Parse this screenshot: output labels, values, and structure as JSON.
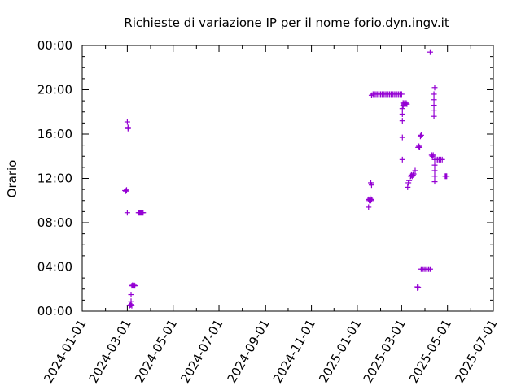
{
  "chart_data": {
    "type": "scatter",
    "title": "Richieste di variazione IP per il nome forio.dyn.ingv.it",
    "xlabel": "",
    "ylabel": "Orario",
    "x_ticks": [
      "2024-01-01",
      "2024-03-01",
      "2024-05-01",
      "2024-07-01",
      "2024-09-01",
      "2024-11-01",
      "2025-01-01",
      "2025-03-01",
      "2025-05-01",
      "2025-07-01"
    ],
    "y_ticks": [
      "00:00",
      "04:00",
      "08:00",
      "12:00",
      "16:00",
      "20:00",
      "00:00"
    ],
    "xlim": [
      "2024-01-01",
      "2025-07-01"
    ],
    "ylim_hours": [
      0,
      24
    ],
    "grid": false,
    "marker": "+",
    "color": "#9400d3",
    "series": [
      {
        "points": [
          [
            "2024-02-27",
            10.9
          ],
          [
            "2024-02-28",
            10.85
          ],
          [
            "2024-02-29",
            10.95
          ],
          [
            "2024-03-01",
            17.1
          ],
          [
            "2024-03-02",
            16.6
          ],
          [
            "2024-03-02",
            16.5
          ],
          [
            "2024-03-01",
            8.9
          ],
          [
            "2024-03-04",
            0.5
          ],
          [
            "2024-03-05",
            0.55
          ],
          [
            "2024-03-06",
            0.6
          ],
          [
            "2024-03-07",
            0.5
          ],
          [
            "2024-03-06",
            0.9
          ],
          [
            "2024-03-06",
            1.5
          ],
          [
            "2024-03-07",
            2.3
          ],
          [
            "2024-03-08",
            2.35
          ],
          [
            "2024-03-09",
            2.3
          ],
          [
            "2024-03-10",
            2.35
          ],
          [
            "2024-03-11",
            2.3
          ],
          [
            "2024-03-16",
            8.9
          ],
          [
            "2024-03-17",
            8.9
          ],
          [
            "2024-03-18",
            8.9
          ],
          [
            "2024-03-19",
            8.9
          ],
          [
            "2024-03-20",
            8.9
          ],
          [
            "2024-03-21",
            8.9
          ],
          [
            "2024-03-22",
            8.9
          ],
          [
            "2025-01-16",
            9.4
          ],
          [
            "2025-01-16",
            10.1
          ],
          [
            "2025-01-17",
            10.0
          ],
          [
            "2025-01-18",
            10.2
          ],
          [
            "2025-01-19",
            10.0
          ],
          [
            "2025-01-20",
            10.1
          ],
          [
            "2025-01-19",
            11.6
          ],
          [
            "2025-01-20",
            11.4
          ],
          [
            "2025-01-20",
            19.5
          ],
          [
            "2025-01-22",
            19.6
          ],
          [
            "2025-01-24",
            19.6
          ],
          [
            "2025-01-26",
            19.6
          ],
          [
            "2025-01-28",
            19.6
          ],
          [
            "2025-01-30",
            19.6
          ],
          [
            "2025-02-01",
            19.6
          ],
          [
            "2025-02-03",
            19.6
          ],
          [
            "2025-02-05",
            19.6
          ],
          [
            "2025-02-07",
            19.6
          ],
          [
            "2025-02-09",
            19.6
          ],
          [
            "2025-02-11",
            19.6
          ],
          [
            "2025-02-13",
            19.6
          ],
          [
            "2025-02-15",
            19.6
          ],
          [
            "2025-02-17",
            19.6
          ],
          [
            "2025-02-19",
            19.6
          ],
          [
            "2025-02-21",
            19.6
          ],
          [
            "2025-02-23",
            19.6
          ],
          [
            "2025-02-25",
            19.6
          ],
          [
            "2025-02-27",
            19.6
          ],
          [
            "2025-03-01",
            19.6
          ],
          [
            "2025-03-02",
            15.7
          ],
          [
            "2025-03-02",
            13.7
          ],
          [
            "2025-03-02",
            17.2
          ],
          [
            "2025-03-02",
            17.8
          ],
          [
            "2025-03-02",
            18.3
          ],
          [
            "2025-03-03",
            18.6
          ],
          [
            "2025-03-03",
            18.8
          ],
          [
            "2025-03-04",
            18.7
          ],
          [
            "2025-03-05",
            18.8
          ],
          [
            "2025-03-06",
            18.7
          ],
          [
            "2025-03-07",
            18.8
          ],
          [
            "2025-03-08",
            18.7
          ],
          [
            "2025-03-09",
            11.2
          ],
          [
            "2025-03-10",
            11.6
          ],
          [
            "2025-03-11",
            11.8
          ],
          [
            "2025-03-13",
            12.2
          ],
          [
            "2025-03-14",
            12.3
          ],
          [
            "2025-03-15",
            12.2
          ],
          [
            "2025-03-16",
            12.3
          ],
          [
            "2025-03-17",
            12.4
          ],
          [
            "2025-03-19",
            12.7
          ],
          [
            "2025-03-22",
            2.1
          ],
          [
            "2025-03-22",
            2.2
          ],
          [
            "2025-03-23",
            2.15
          ],
          [
            "2025-03-23",
            14.8
          ],
          [
            "2025-03-24",
            14.9
          ],
          [
            "2025-03-25",
            14.8
          ],
          [
            "2025-03-26",
            15.8
          ],
          [
            "2025-03-27",
            15.9
          ],
          [
            "2025-03-27",
            3.8
          ],
          [
            "2025-03-29",
            3.8
          ],
          [
            "2025-03-31",
            3.8
          ],
          [
            "2025-04-02",
            3.8
          ],
          [
            "2025-04-04",
            3.8
          ],
          [
            "2025-04-06",
            3.8
          ],
          [
            "2025-04-08",
            3.8
          ],
          [
            "2025-04-08",
            23.4
          ],
          [
            "2025-04-10",
            14.1
          ],
          [
            "2025-04-11",
            14.0
          ],
          [
            "2025-04-12",
            14.1
          ],
          [
            "2025-04-13",
            17.6
          ],
          [
            "2025-04-13",
            18.1
          ],
          [
            "2025-04-13",
            18.6
          ],
          [
            "2025-04-13",
            19.1
          ],
          [
            "2025-04-13",
            19.6
          ],
          [
            "2025-04-14",
            20.2
          ],
          [
            "2025-04-14",
            11.7
          ],
          [
            "2025-04-14",
            12.2
          ],
          [
            "2025-04-14",
            12.7
          ],
          [
            "2025-04-14",
            13.2
          ],
          [
            "2025-04-14",
            13.7
          ],
          [
            "2025-04-16",
            13.7
          ],
          [
            "2025-04-18",
            13.7
          ],
          [
            "2025-04-20",
            13.7
          ],
          [
            "2025-04-22",
            13.7
          ],
          [
            "2025-04-24",
            13.7
          ],
          [
            "2025-04-28",
            12.2
          ],
          [
            "2025-04-29",
            12.2
          ],
          [
            "2025-04-30",
            12.2
          ]
        ]
      }
    ]
  }
}
